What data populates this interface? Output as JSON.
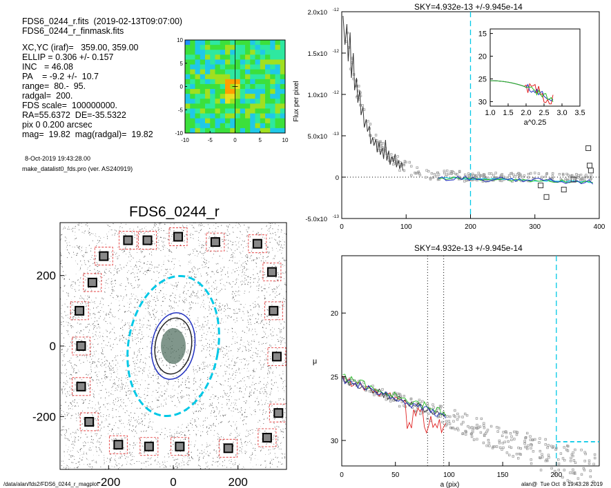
{
  "header": {
    "line1": "FDS6_0244_r.fits  (2019-02-13T09:07:00)",
    "line2": "FDS6_0244_r_finmask.fits",
    "params": [
      "XC,YC (iraf)=   359.00, 359.00",
      "ELLIP = 0.306 +/- 0.157",
      "INC   = 46.08",
      "PA    = -9.2 +/-  10.7",
      "range=  80.-  95.",
      "radgal=  200.",
      "FDS scale=  100000000.",
      "RA=55.6372  DE=-35.5322",
      "pix 0 0.200 arcsec",
      "mag=  19.82  mag(radgal)=  19.82"
    ],
    "date": "8-Oct-2019 19:43:28.00",
    "program": "make_datalist0_fds.pro (ver. AS240919)"
  },
  "footer": {
    "path": "/data/alan/fds2/FDS6_0244_r_magplot",
    "stamp": "alan@  Tue Oct  8 19:43:28 2019"
  },
  "colors": {
    "sky": "#00c8e6",
    "green": "#22bb22",
    "red": "#e02020",
    "blue": "#2030c0",
    "gray": "#9a9a9a",
    "mask_box": "#e02020",
    "dark": "#222222"
  },
  "chart_data": [
    {
      "id": "thumbnail",
      "type": "heatmap",
      "xlim": [
        -10,
        10
      ],
      "ylim": [
        -10,
        10
      ],
      "x_ticks": [
        "-10",
        "-5",
        "0",
        "5",
        "10"
      ],
      "y_ticks": [
        "10",
        "5",
        "0",
        "-5",
        "-10"
      ]
    },
    {
      "id": "mask_image",
      "type": "scatter",
      "title": "FDS6_0244_r",
      "xlim": [
        -350,
        350
      ],
      "ylim": [
        -350,
        350
      ],
      "x_ticks": [
        "-200",
        "0",
        "200"
      ],
      "y_ticks": [
        "200",
        "0",
        "-200"
      ],
      "ellipses": [
        {
          "color": "sky",
          "a": 200,
          "b": 139,
          "pa": -9.2,
          "dashed": true
        },
        {
          "color": "blue",
          "a": 95,
          "b": 66,
          "pa": -9.2,
          "dashed": false
        },
        {
          "color": "dark",
          "a": 80,
          "b": 56,
          "pa": -9.2,
          "dashed": false
        }
      ],
      "masked_boxes": [
        [
          -140,
          300
        ],
        [
          15,
          310
        ],
        [
          130,
          295
        ],
        [
          260,
          290
        ],
        [
          -215,
          255
        ],
        [
          -250,
          180
        ],
        [
          305,
          210
        ],
        [
          -290,
          100
        ],
        [
          310,
          100
        ],
        [
          -285,
          0
        ],
        [
          320,
          -30
        ],
        [
          -285,
          -115
        ],
        [
          -260,
          -215
        ],
        [
          325,
          -190
        ],
        [
          -170,
          -280
        ],
        [
          -80,
          300
        ],
        [
          290,
          -260
        ],
        [
          -75,
          -285
        ],
        [
          20,
          -285
        ],
        [
          170,
          -290
        ]
      ]
    },
    {
      "id": "flux_profile",
      "type": "line",
      "title": "SKY=4.932e-13 +/-9.945e-14",
      "ylabel": "Flux per pixel",
      "xlim": [
        0,
        400
      ],
      "ylim": [
        -5e-13,
        2e-12
      ],
      "x_ticks": [
        0,
        100,
        200,
        300,
        400
      ],
      "y_ticks": [
        {
          "v": 2e-12,
          "m": "2.0x10",
          "e": "-12"
        },
        {
          "v": 1.5e-12,
          "m": "1.5x10",
          "e": "-12"
        },
        {
          "v": 1e-12,
          "m": "1.0x10",
          "e": "-12"
        },
        {
          "v": 5e-13,
          "m": "5.0x10",
          "e": "-13"
        },
        {
          "v": 0,
          "m": "0",
          "e": ""
        },
        {
          "v": -5e-13,
          "m": "-5.0x10",
          "e": "-13"
        }
      ],
      "sky_radius": 200,
      "profile": {
        "x": [
          2,
          5,
          8,
          10,
          13,
          15,
          18,
          20,
          23,
          25,
          28,
          30,
          33,
          35,
          38,
          40,
          43,
          45,
          48,
          50,
          53,
          55,
          58,
          60,
          63,
          65,
          68,
          70,
          73,
          75,
          78,
          80,
          83,
          85,
          88,
          90,
          93,
          95
        ],
        "y": [
          1.95e-12,
          1.6e-12,
          1.85e-12,
          1.4e-12,
          1.75e-12,
          1.2e-12,
          1.5e-12,
          1.05e-12,
          1.2e-12,
          9e-13,
          1.05e-12,
          7.5e-13,
          8.5e-13,
          6e-13,
          7e-13,
          5.5e-13,
          6.2e-13,
          4e-13,
          4.8e-13,
          3.8e-13,
          4.6e-13,
          3e-13,
          4.2e-13,
          2.7e-13,
          3.5e-13,
          2.2e-13,
          4.5e-13,
          2e-13,
          3.2e-13,
          1.5e-13,
          2.5e-13,
          1.8e-13,
          2.8e-13,
          1.2e-13,
          2e-13,
          1e-13,
          1.8e-13,
          8e-14
        ]
      },
      "outliers": {
        "x": [
          309,
          318,
          345,
          360,
          383,
          385,
          387
        ],
        "y": [
          -1e-13,
          -2.4e-13,
          -1.5e-13,
          -3e-14,
          3.5e-13,
          1.4e-13,
          8e-14
        ]
      },
      "inset": {
        "xlabel": "a^0.25",
        "xlim": [
          1.0,
          3.5
        ],
        "ylim": [
          31,
          14
        ],
        "x_ticks": [
          "1.0",
          "1.5",
          "2.0",
          "2.5",
          "3.0",
          "3.5"
        ],
        "y_ticks": [
          15,
          20,
          25,
          30
        ]
      }
    },
    {
      "id": "mu_profile",
      "type": "line",
      "title": "SKY=4.932e-13 +/-9.945e-14",
      "xlabel": "a (pix)",
      "ylabel": "μ",
      "xlim": [
        0,
        240
      ],
      "ylim": [
        32,
        15.5
      ],
      "x_ticks": [
        0,
        50,
        100,
        150,
        200
      ],
      "y_ticks": [
        20,
        25,
        30
      ],
      "range_lines": [
        80,
        95
      ],
      "sky_radius": 200,
      "sky_level": 30.1
    }
  ]
}
